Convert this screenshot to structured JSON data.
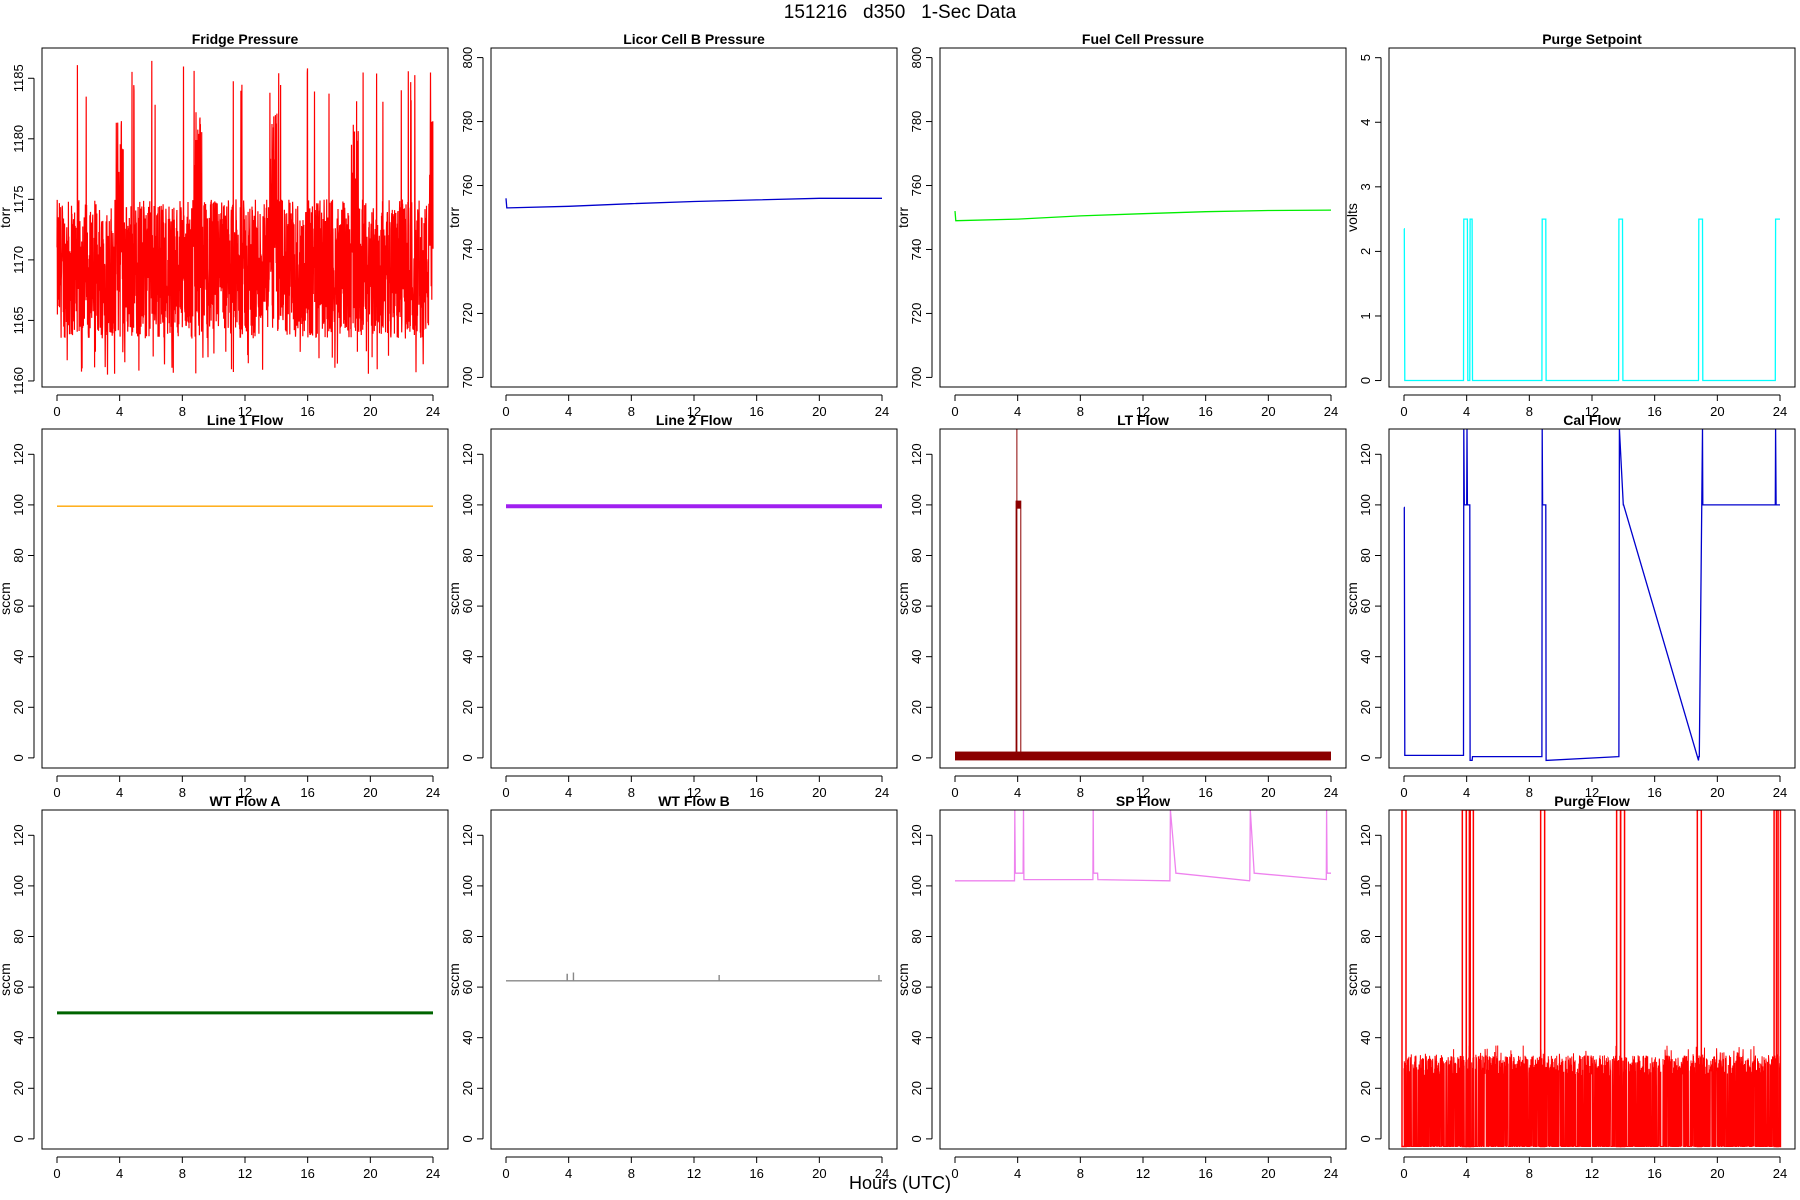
{
  "header": {
    "title": "151216   d350   1-Sec Data"
  },
  "footer": {
    "xlabel": "Hours (UTC)"
  },
  "chart_data": [
    {
      "type": "line",
      "title": "Fridge Pressure",
      "ylabel": "torr",
      "color": "#ff0000",
      "xlim": [
        0,
        24
      ],
      "ylim": [
        1159.5,
        1187.5
      ],
      "xticks": [
        0,
        4,
        8,
        12,
        16,
        20,
        24
      ],
      "yticks": [
        1160,
        1165,
        1170,
        1175,
        1180,
        1185
      ],
      "render": "noise",
      "band_low": 1163.5,
      "band_high": 1175,
      "spike_max": 1186.5,
      "series": [
        {
          "x": [
            0,
            4,
            9,
            13.8,
            19,
            24
          ],
          "y": [
            1169.5,
            1169.5,
            1169.5,
            1169.5,
            1169.5,
            1169.5
          ]
        }
      ]
    },
    {
      "type": "line",
      "title": "Licor Cell B Pressure",
      "ylabel": "torr",
      "color": "#0000cd",
      "xlim": [
        0,
        24
      ],
      "ylim": [
        697,
        803
      ],
      "xticks": [
        0,
        4,
        8,
        12,
        16,
        20,
        24
      ],
      "yticks": [
        700,
        720,
        740,
        760,
        780,
        800
      ],
      "series": [
        {
          "x": [
            0,
            0.05,
            0.1,
            4,
            8,
            12,
            16,
            20,
            24
          ],
          "y": [
            756,
            753,
            753,
            753.5,
            754.3,
            755,
            755.5,
            756,
            756
          ]
        }
      ]
    },
    {
      "type": "line",
      "title": "Fuel Cell Pressure",
      "ylabel": "torr",
      "color": "#00ee00",
      "xlim": [
        0,
        24
      ],
      "ylim": [
        697,
        803
      ],
      "xticks": [
        0,
        4,
        8,
        12,
        16,
        20,
        24
      ],
      "yticks": [
        700,
        720,
        740,
        760,
        780,
        800
      ],
      "series": [
        {
          "x": [
            0,
            0.05,
            0.1,
            4,
            8,
            12,
            16,
            20,
            24
          ],
          "y": [
            752,
            749,
            749,
            749.5,
            750.5,
            751.2,
            751.8,
            752.2,
            752.3
          ]
        }
      ]
    },
    {
      "type": "line",
      "title": "Purge Setpoint",
      "ylabel": "volts",
      "color": "#00ffff",
      "xlim": [
        0,
        24
      ],
      "ylim": [
        -0.1,
        5.15
      ],
      "xticks": [
        0,
        4,
        8,
        12,
        16,
        20,
        24
      ],
      "yticks": [
        0,
        1,
        2,
        3,
        4,
        5
      ],
      "series": [
        {
          "x": [
            0,
            0.02,
            0.05,
            3.8,
            3.82,
            4.05,
            4.07,
            4.2,
            4.22,
            4.35,
            4.37,
            8.8,
            8.82,
            9.05,
            9.07,
            13.7,
            13.72,
            13.95,
            13.97,
            18.8,
            18.82,
            19.05,
            19.07,
            23.7,
            23.72,
            24
          ],
          "y": [
            2.35,
            2.35,
            0,
            0,
            2.5,
            2.5,
            0,
            0,
            2.5,
            2.5,
            0,
            0,
            2.5,
            2.5,
            0,
            0,
            2.5,
            2.5,
            0,
            0,
            2.5,
            2.5,
            0,
            0,
            2.5,
            2.5
          ]
        }
      ]
    },
    {
      "type": "line",
      "title": "Line 1 Flow",
      "ylabel": "sccm",
      "color": "#ffa500",
      "xlim": [
        0,
        24
      ],
      "ylim": [
        -4,
        130
      ],
      "xticks": [
        0,
        4,
        8,
        12,
        16,
        20,
        24
      ],
      "yticks": [
        0,
        20,
        40,
        60,
        80,
        100,
        120
      ],
      "series": [
        {
          "x": [
            0,
            24
          ],
          "y": [
            99.5,
            99.5
          ]
        }
      ]
    },
    {
      "type": "line",
      "title": "Line 2 Flow",
      "ylabel": "sccm",
      "color": "#a020f0",
      "stroke_width": 4,
      "xlim": [
        0,
        24
      ],
      "ylim": [
        -4,
        130
      ],
      "xticks": [
        0,
        4,
        8,
        12,
        16,
        20,
        24
      ],
      "yticks": [
        0,
        20,
        40,
        60,
        80,
        100,
        120
      ],
      "series": [
        {
          "x": [
            0,
            24
          ],
          "y": [
            99.5,
            99.5
          ]
        }
      ]
    },
    {
      "type": "line",
      "title": "LT Flow",
      "ylabel": "sccm",
      "color": "#8b0000",
      "xlim": [
        0,
        24
      ],
      "ylim": [
        -4,
        130
      ],
      "xticks": [
        0,
        4,
        8,
        12,
        16,
        20,
        24
      ],
      "yticks": [
        0,
        20,
        40,
        60,
        80,
        100,
        120
      ],
      "render": "lt",
      "baseline": 1,
      "block": [
        3.9,
        4.2
      ],
      "block_level": 100,
      "spike_x": 3.95,
      "series": [
        {
          "x": [
            0,
            3.9,
            3.9,
            4.2,
            4.2,
            24
          ],
          "y": [
            1,
            1,
            100,
            100,
            1,
            1
          ]
        }
      ]
    },
    {
      "type": "line",
      "title": "Cal Flow",
      "ylabel": "sccm",
      "color": "#0000cd",
      "xlim": [
        0,
        24
      ],
      "ylim": [
        -4,
        130
      ],
      "xticks": [
        0,
        4,
        8,
        12,
        16,
        20,
        24
      ],
      "yticks": [
        0,
        20,
        40,
        60,
        80,
        100,
        120
      ],
      "series": [
        {
          "x": [
            0,
            0.02,
            0.05,
            3.8,
            3.82,
            3.85,
            4.0,
            4.02,
            4.05,
            4.2,
            4.22,
            4.35,
            4.37,
            8.8,
            8.82,
            8.85,
            9.05,
            9.07,
            13.7,
            13.72,
            13.75,
            14.0,
            14.02,
            18.8,
            18.82,
            18.85,
            19.05,
            19.07,
            23.7,
            23.72,
            23.75,
            24
          ],
          "y": [
            99,
            99,
            1,
            1,
            130,
            100,
            100,
            130,
            100,
            100,
            -1,
            -1,
            0.5,
            0.5,
            130,
            100,
            100,
            -1,
            0.5,
            0.5,
            130,
            100,
            100,
            -1,
            0.5,
            0.5,
            130,
            100,
            100,
            130,
            100,
            100
          ]
        }
      ]
    },
    {
      "type": "line",
      "title": "WT Flow A",
      "ylabel": "sccm",
      "color": "#006400",
      "stroke_width": 3,
      "xlim": [
        0,
        24
      ],
      "ylim": [
        -4,
        130
      ],
      "xticks": [
        0,
        4,
        8,
        12,
        16,
        20,
        24
      ],
      "yticks": [
        0,
        20,
        40,
        60,
        80,
        100,
        120
      ],
      "series": [
        {
          "x": [
            0,
            24
          ],
          "y": [
            49.8,
            49.8
          ]
        }
      ]
    },
    {
      "type": "line",
      "title": "WT Flow B",
      "ylabel": "sccm",
      "color": "#888888",
      "xlim": [
        0,
        24
      ],
      "ylim": [
        -4,
        130
      ],
      "xticks": [
        0,
        4,
        8,
        12,
        16,
        20,
        24
      ],
      "yticks": [
        0,
        20,
        40,
        60,
        80,
        100,
        120
      ],
      "series": [
        {
          "x": [
            0,
            3.9,
            3.9,
            3.91,
            3.91,
            4.3,
            4.3,
            4.31,
            4.31,
            13.6,
            13.6,
            13.61,
            13.61,
            23.8,
            23.8,
            23.81,
            23.81,
            24
          ],
          "y": [
            62.5,
            62.5,
            65,
            65,
            62.5,
            62.5,
            65.5,
            65.5,
            62.5,
            62.5,
            64.5,
            64.5,
            62.5,
            62.5,
            64.5,
            64.5,
            62.5,
            62.5
          ]
        }
      ]
    },
    {
      "type": "line",
      "title": "SP Flow",
      "ylabel": "sccm",
      "color": "#ee82ee",
      "xlim": [
        0,
        24
      ],
      "ylim": [
        -4,
        130
      ],
      "xticks": [
        0,
        4,
        8,
        12,
        16,
        20,
        24
      ],
      "yticks": [
        0,
        20,
        40,
        60,
        80,
        100,
        120
      ],
      "series": [
        {
          "x": [
            0,
            3.8,
            3.82,
            3.85,
            4.35,
            4.37,
            4.4,
            8.8,
            8.82,
            8.85,
            9.1,
            9.12,
            13.7,
            13.72,
            13.75,
            14.1,
            14.12,
            18.8,
            18.82,
            18.85,
            19.1,
            19.12,
            23.7,
            23.72,
            23.75,
            24
          ],
          "y": [
            102,
            102,
            130,
            105,
            105,
            130,
            102.5,
            102.5,
            130,
            105,
            105,
            102.5,
            102,
            102,
            130,
            105,
            105,
            102,
            102.5,
            130,
            105,
            105,
            102.5,
            130,
            105,
            105
          ]
        }
      ]
    },
    {
      "type": "line",
      "title": "Purge Flow",
      "ylabel": "sccm",
      "color": "#ff0000",
      "xlim": [
        0,
        24
      ],
      "ylim": [
        -4,
        130
      ],
      "xticks": [
        0,
        4,
        8,
        12,
        16,
        20,
        24
      ],
      "yticks": [
        0,
        20,
        40,
        60,
        80,
        100,
        120
      ],
      "render": "purge",
      "noise_low": -3,
      "noise_high": 33,
      "noise_spike": 37,
      "series": [
        {
          "x": [
            0,
            3.85,
            4.1,
            4.3,
            8.85,
            13.7,
            13.95,
            18.85,
            23.75,
            23.9
          ],
          "y": [
            130,
            130,
            130,
            130,
            130,
            130,
            130,
            130,
            130,
            130
          ]
        }
      ]
    }
  ]
}
